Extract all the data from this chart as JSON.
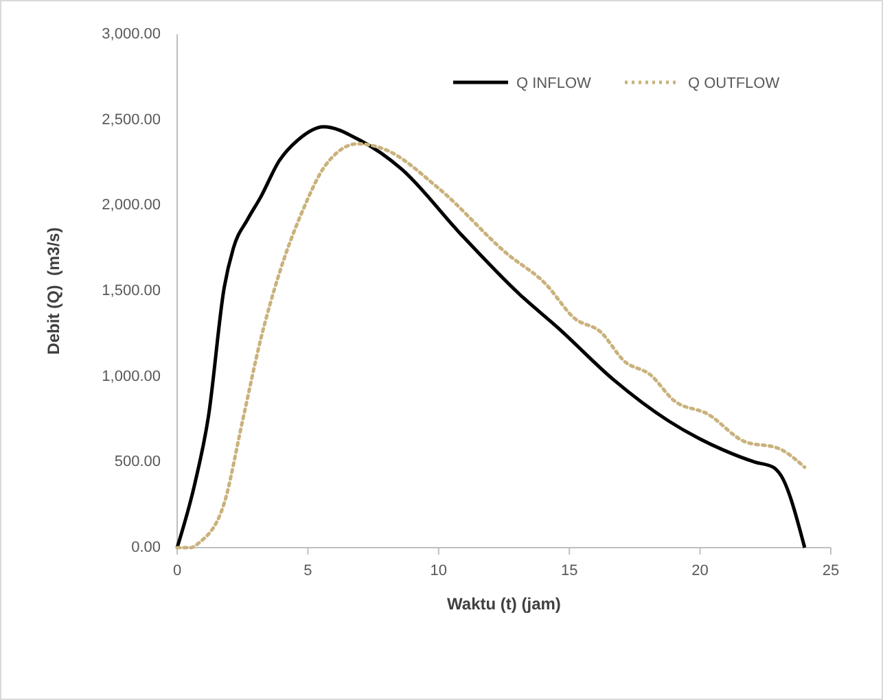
{
  "chart_data": {
    "type": "line",
    "xlabel": "Waktu (t) (jam)",
    "ylabel": "Debit (Q)  (m3/s)",
    "xlim": [
      0,
      25
    ],
    "xticks": [
      0,
      5,
      10,
      15,
      20,
      25
    ],
    "ylim": [
      0,
      3000
    ],
    "yticks": [
      {
        "value": 0,
        "label": "0.00"
      },
      {
        "value": 500,
        "label": "500.00"
      },
      {
        "value": 1000,
        "label": "1,000.00"
      },
      {
        "value": 1500,
        "label": "1,500.00"
      },
      {
        "value": 2000,
        "label": "2,000.00"
      },
      {
        "value": 2500,
        "label": "2,500.00"
      },
      {
        "value": 3000,
        "label": "3,000.00"
      }
    ],
    "grid": false,
    "legend": "top right",
    "marker": "none",
    "series": [
      {
        "name": "Q INFLOW",
        "color": "#000000",
        "line_style": "solid",
        "x": [
          0,
          0.67,
          1.2,
          1.8,
          2.15,
          2.7,
          3.2,
          3.9,
          4.6,
          5.6,
          7,
          8.6,
          10.8,
          13.1,
          14.6,
          16.7,
          18.8,
          20.9,
          22.1,
          22.8,
          23.1,
          24
        ],
        "values": [
          0,
          370,
          770,
          1520,
          1750,
          1920,
          2050,
          2260,
          2380,
          2460,
          2380,
          2210,
          1840,
          1480,
          1280,
          980,
          740,
          570,
          500,
          470,
          420,
          0
        ]
      },
      {
        "name": "Q OUTFLOW",
        "color": "#c9b27c",
        "line_style": "dotted",
        "x": [
          0,
          0.5,
          0.85,
          1.8,
          2.5,
          3.2,
          3.9,
          4.8,
          5.7,
          6.9,
          7.9,
          10,
          12.6,
          14.1,
          15.2,
          16.2,
          17.1,
          18.1,
          19,
          20.3,
          21.7,
          23,
          24
        ],
        "values": [
          0,
          0,
          30,
          260,
          740,
          1220,
          1600,
          1970,
          2240,
          2360,
          2330,
          2100,
          1720,
          1540,
          1340,
          1260,
          1090,
          1010,
          860,
          780,
          620,
          580,
          470
        ]
      }
    ]
  }
}
